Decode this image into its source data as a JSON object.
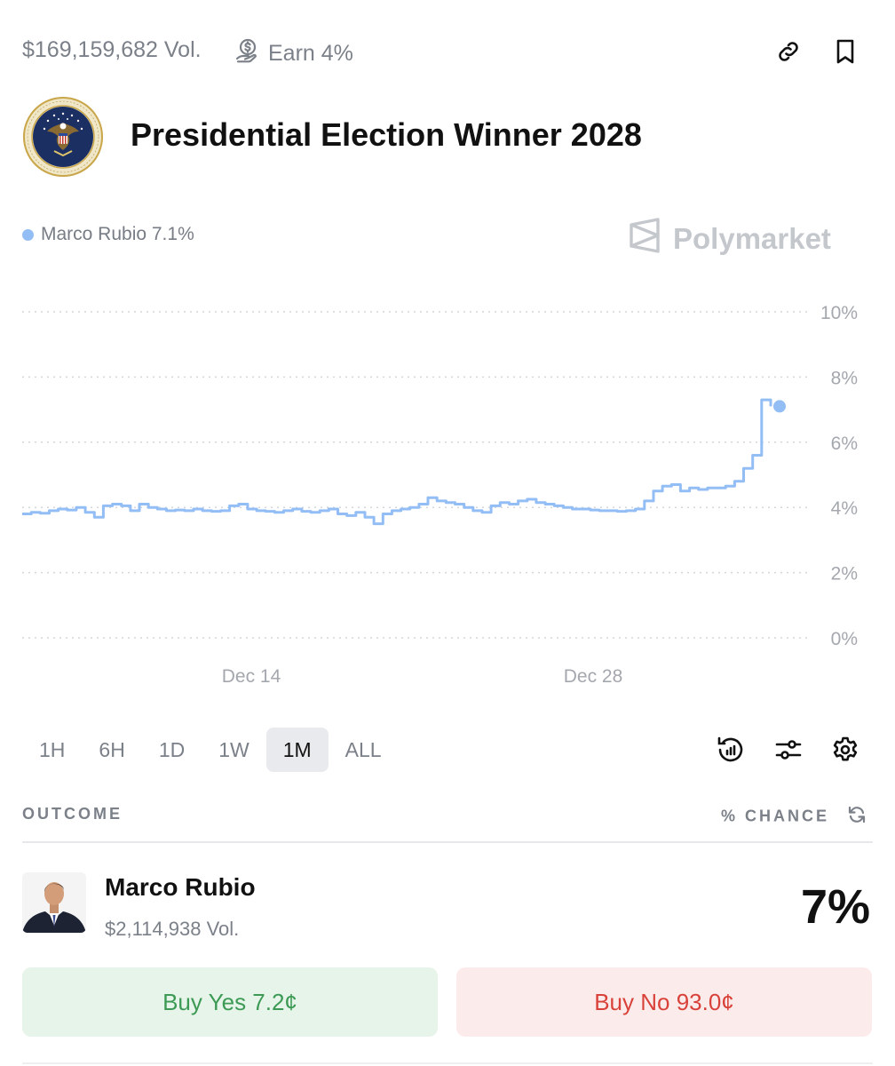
{
  "header": {
    "volume": "$169,159,682 Vol.",
    "earn": "Earn 4%",
    "earn_icon": "coin-hand-icon",
    "link_icon": "link-icon",
    "bookmark_icon": "bookmark-icon"
  },
  "market": {
    "title": "Presidential Election Winner 2028",
    "image": "presidential-seal"
  },
  "legend": {
    "label": "Marco Rubio 7.1%",
    "color": "#93bdf5"
  },
  "brand": {
    "name": "Polymarket",
    "color": "#c4c8cd"
  },
  "chart_data": {
    "type": "line",
    "y_ticks": [
      "10%",
      "8%",
      "6%",
      "4%",
      "2%",
      "0%"
    ],
    "y_tick_values": [
      10,
      8,
      6,
      4,
      2,
      0
    ],
    "ylim": [
      0,
      10
    ],
    "x_ticks": [
      "Dec 14",
      "Dec 28"
    ],
    "grid": true,
    "series": [
      {
        "name": "Marco Rubio",
        "color": "#93bdf5",
        "values": [
          3.8,
          3.85,
          3.82,
          3.9,
          3.95,
          3.92,
          4.0,
          3.85,
          3.7,
          4.05,
          4.1,
          4.05,
          3.9,
          4.1,
          4.0,
          3.95,
          3.9,
          3.92,
          3.9,
          3.95,
          3.9,
          3.88,
          3.9,
          4.05,
          4.1,
          3.95,
          3.9,
          3.88,
          3.85,
          3.9,
          3.95,
          3.88,
          3.85,
          3.9,
          3.95,
          3.8,
          3.75,
          3.85,
          3.7,
          3.5,
          3.8,
          3.9,
          3.95,
          4.0,
          4.1,
          4.3,
          4.2,
          4.15,
          4.1,
          4.0,
          3.9,
          3.85,
          4.05,
          4.15,
          4.1,
          4.2,
          4.25,
          4.15,
          4.1,
          4.05,
          4.0,
          3.95,
          3.95,
          3.92,
          3.9,
          3.9,
          3.88,
          3.9,
          3.95,
          4.2,
          4.5,
          4.65,
          4.7,
          4.5,
          4.6,
          4.55,
          4.6,
          4.6,
          4.65,
          4.8,
          5.2,
          5.6,
          7.3,
          7.1
        ]
      }
    ]
  },
  "ranges": [
    "1H",
    "6H",
    "1D",
    "1W",
    "1M",
    "ALL"
  ],
  "active_range": "1M",
  "chart_tools": {
    "history_icon": "history-icon",
    "filter_icon": "sliders-icon",
    "settings_icon": "gear-icon"
  },
  "table": {
    "outcome_header": "OUTCOME",
    "chance_header": "% CHANCE"
  },
  "outcome": {
    "name": "Marco Rubio",
    "volume": "$2,114,938 Vol.",
    "chance": "7%",
    "avatar": "candidate-photo",
    "buy_yes": "Buy Yes 7.2¢",
    "buy_no": "Buy No 93.0¢"
  }
}
